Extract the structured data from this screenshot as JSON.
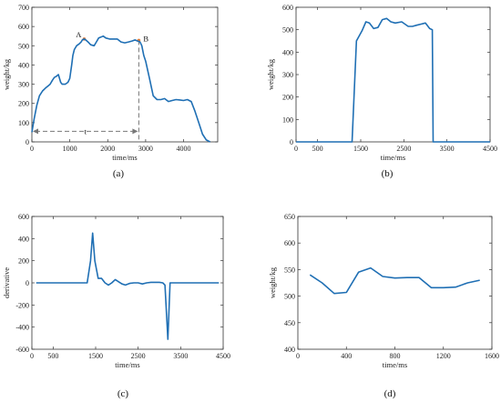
{
  "chart_data": [
    {
      "id": "a",
      "panel_label": "(a)",
      "type": "line",
      "xlabel": "time/ms",
      "ylabel": "weight/kg",
      "xlim": [
        0,
        4900
      ],
      "ylim": [
        0,
        700
      ],
      "xticks": [
        0,
        1000,
        2000,
        3000,
        4000
      ],
      "yticks": [
        0,
        100,
        200,
        300,
        400,
        500,
        600,
        700
      ],
      "color": "#1f6fb4",
      "series": [
        {
          "x": [
            0,
            60,
            130,
            200,
            280,
            360,
            420,
            480,
            540,
            590,
            640,
            700,
            760,
            800,
            880,
            950,
            1000,
            1050,
            1080,
            1120,
            1180,
            1250,
            1300,
            1330,
            1380,
            1420,
            1480,
            1550,
            1640,
            1700,
            1760,
            1820,
            1880,
            1950,
            2050,
            2150,
            2250,
            2350,
            2450,
            2550,
            2650,
            2720,
            2780,
            2850,
            2900,
            2950,
            3000,
            3100,
            3200,
            3300,
            3400,
            3500,
            3600,
            3700,
            3800,
            3900,
            4000,
            4100,
            4200,
            4300,
            4400,
            4500,
            4600,
            4650,
            4700
          ],
          "y": [
            50,
            120,
            190,
            240,
            265,
            280,
            290,
            300,
            320,
            335,
            340,
            350,
            310,
            300,
            300,
            310,
            330,
            400,
            450,
            480,
            500,
            510,
            520,
            530,
            535,
            530,
            520,
            505,
            500,
            520,
            540,
            545,
            550,
            540,
            535,
            535,
            535,
            520,
            515,
            520,
            525,
            530,
            525,
            520,
            500,
            450,
            420,
            330,
            240,
            220,
            220,
            225,
            210,
            215,
            220,
            218,
            215,
            220,
            210,
            160,
            100,
            40,
            10,
            5,
            0
          ]
        }
      ],
      "annotations": [
        {
          "text": "A",
          "x": 1380,
          "y": 535
        },
        {
          "text": "B",
          "x": 2820,
          "y": 528
        },
        {
          "text": "t",
          "x1": 0,
          "x2": 2820,
          "y": 55
        }
      ]
    },
    {
      "id": "b",
      "panel_label": "(b)",
      "type": "line",
      "xlabel": "time/ms",
      "ylabel": "weight/kg",
      "xlim": [
        0,
        4500
      ],
      "ylim": [
        0,
        600
      ],
      "xticks": [
        0,
        500,
        1500,
        2500,
        3500,
        4500
      ],
      "yticks": [
        0,
        100,
        200,
        300,
        400,
        500,
        600
      ],
      "color": "#1f6fb4",
      "series": [
        {
          "x": [
            0,
            1300,
            1400,
            1530,
            1620,
            1700,
            1800,
            1900,
            2000,
            2100,
            2200,
            2300,
            2450,
            2600,
            2700,
            2800,
            2900,
            3000,
            3100,
            3160,
            3180,
            4500
          ],
          "y": [
            0,
            0,
            450,
            495,
            535,
            530,
            505,
            510,
            545,
            550,
            535,
            530,
            535,
            515,
            515,
            520,
            525,
            530,
            505,
            500,
            0,
            0
          ]
        }
      ]
    },
    {
      "id": "c",
      "panel_label": "(c)",
      "type": "line",
      "xlabel": "time/ms",
      "ylabel": "derivative",
      "xlim": [
        0,
        4500
      ],
      "ylim": [
        -600,
        600
      ],
      "xticks": [
        0,
        500,
        1500,
        2500,
        3500,
        4500
      ],
      "yticks": [
        -600,
        -400,
        -200,
        0,
        200,
        400,
        600
      ],
      "color": "#1f6fb4",
      "series": [
        {
          "x": [
            100,
            1300,
            1380,
            1430,
            1480,
            1560,
            1640,
            1720,
            1800,
            1880,
            1960,
            2040,
            2120,
            2200,
            2300,
            2400,
            2500,
            2600,
            2700,
            2800,
            2900,
            3000,
            3080,
            3130,
            3200,
            3250,
            3350,
            4400
          ],
          "y": [
            0,
            0,
            200,
            450,
            200,
            40,
            40,
            0,
            -20,
            0,
            30,
            10,
            -10,
            -20,
            -5,
            0,
            0,
            -10,
            0,
            5,
            5,
            5,
            0,
            -20,
            -510,
            0,
            0,
            0
          ]
        }
      ]
    },
    {
      "id": "d",
      "panel_label": "(d)",
      "type": "line",
      "xlabel": "time/ms",
      "ylabel": "weight/kg",
      "xlim": [
        0,
        1600
      ],
      "ylim": [
        400,
        650
      ],
      "xticks": [
        0,
        400,
        800,
        1200,
        1600
      ],
      "yticks": [
        400,
        450,
        500,
        550,
        600,
        650
      ],
      "color": "#1f6fb4",
      "series": [
        {
          "x": [
            100,
            200,
            300,
            400,
            500,
            600,
            700,
            800,
            900,
            1000,
            1100,
            1200,
            1300,
            1400,
            1500
          ],
          "y": [
            540,
            525,
            505,
            507,
            545,
            553,
            537,
            534,
            535,
            535,
            516,
            516,
            517,
            525,
            530
          ]
        }
      ]
    }
  ]
}
